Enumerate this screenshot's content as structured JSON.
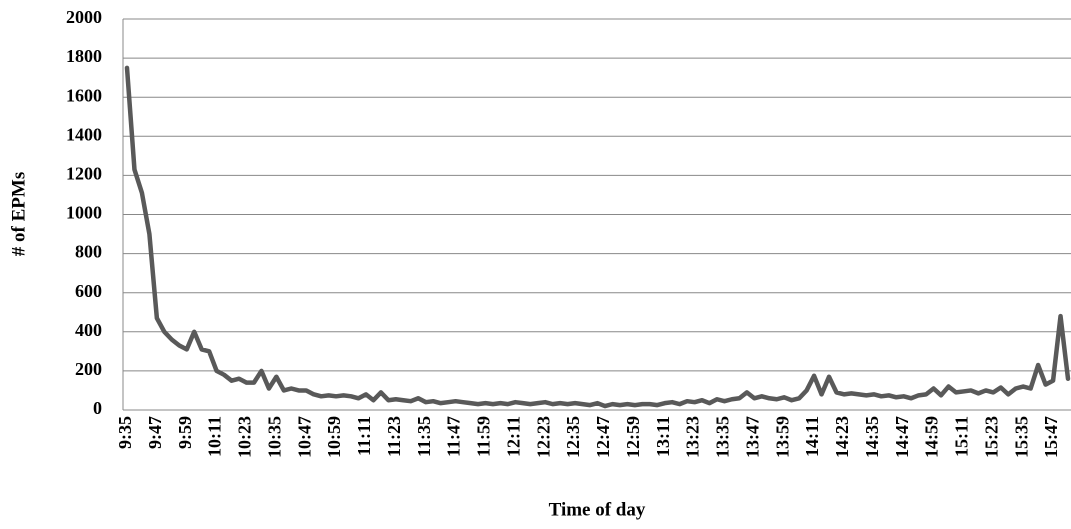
{
  "chart_data": {
    "type": "line",
    "xlabel": "Time of day",
    "ylabel": "# of EPMs",
    "categories": [
      "9:35",
      null,
      null,
      null,
      "9:47",
      null,
      null,
      null,
      "9:59",
      null,
      null,
      null,
      "10:11",
      null,
      null,
      null,
      "10:23",
      null,
      null,
      null,
      "10:35",
      null,
      null,
      null,
      "10:47",
      null,
      null,
      null,
      "10:59",
      null,
      null,
      null,
      "11:11",
      null,
      null,
      null,
      "11:23",
      null,
      null,
      null,
      "11:35",
      null,
      null,
      null,
      "11:47",
      null,
      null,
      null,
      "11:59",
      null,
      null,
      null,
      "12:11",
      null,
      null,
      null,
      "12:23",
      null,
      null,
      null,
      "12:35",
      null,
      null,
      null,
      "12:47",
      null,
      null,
      null,
      "12:59",
      null,
      null,
      null,
      "13:11",
      null,
      null,
      null,
      "13:23",
      null,
      null,
      null,
      "13:35",
      null,
      null,
      null,
      "13:47",
      null,
      null,
      null,
      "13:59",
      null,
      null,
      null,
      "14:11",
      null,
      null,
      null,
      "14:23",
      null,
      null,
      null,
      "14:35",
      null,
      null,
      null,
      "14:47",
      null,
      null,
      null,
      "14:59",
      null,
      null,
      null,
      "15:11",
      null,
      null,
      null,
      "15:23",
      null,
      null,
      null,
      "15:35",
      null,
      null,
      null,
      "15:47",
      null,
      null
    ],
    "values": [
      1750,
      1230,
      1110,
      900,
      470,
      400,
      360,
      330,
      310,
      400,
      310,
      300,
      200,
      180,
      150,
      160,
      140,
      140,
      200,
      110,
      170,
      100,
      110,
      100,
      100,
      80,
      70,
      75,
      70,
      75,
      70,
      60,
      80,
      50,
      90,
      50,
      55,
      50,
      45,
      60,
      40,
      45,
      35,
      40,
      45,
      40,
      35,
      30,
      35,
      30,
      35,
      30,
      40,
      35,
      30,
      35,
      40,
      30,
      35,
      30,
      35,
      30,
      25,
      35,
      20,
      30,
      25,
      30,
      25,
      30,
      30,
      25,
      35,
      40,
      30,
      45,
      40,
      50,
      35,
      55,
      45,
      55,
      60,
      90,
      60,
      70,
      60,
      55,
      65,
      50,
      60,
      100,
      175,
      80,
      170,
      90,
      80,
      85,
      80,
      75,
      80,
      70,
      75,
      65,
      70,
      60,
      75,
      80,
      110,
      75,
      120,
      90,
      95,
      100,
      85,
      100,
      90,
      115,
      80,
      110,
      120,
      110,
      230,
      130,
      150,
      480,
      160
    ],
    "color": "#595959",
    "ylim": [
      0,
      2000
    ],
    "yticks": [
      0,
      200,
      400,
      600,
      800,
      1000,
      1200,
      1400,
      1600,
      1800,
      2000
    ],
    "grid": true
  }
}
